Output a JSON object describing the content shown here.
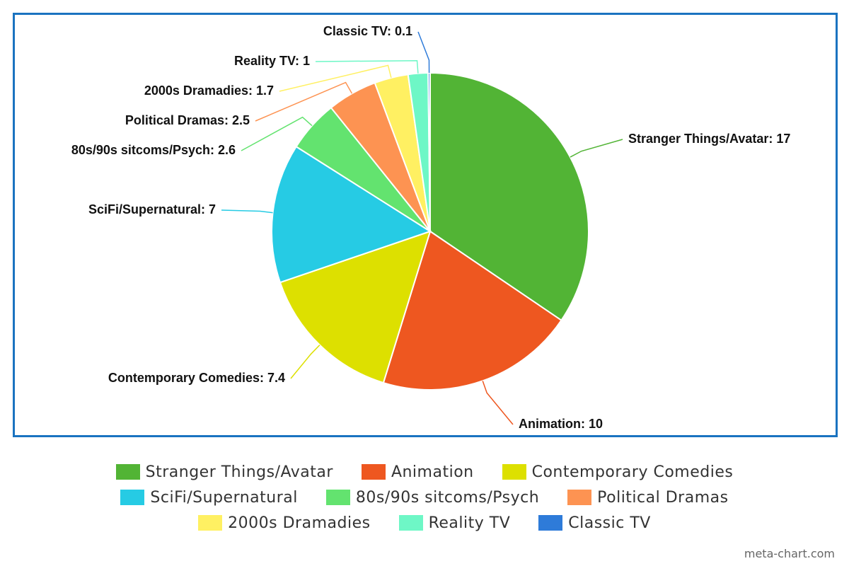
{
  "chart_data": {
    "type": "pie",
    "categories": [
      "Stranger Things/Avatar",
      "Animation",
      "Contemporary Comedies",
      "SciFi/Supernatural",
      "80s/90s sitcoms/Psych",
      "Political Dramas",
      "2000s Dramadies",
      "Reality TV",
      "Classic TV"
    ],
    "values": [
      17,
      10,
      7.4,
      7,
      2.6,
      2.5,
      1.7,
      1,
      0.1
    ],
    "value_labels": [
      "Stranger Things/Avatar: 17",
      "Animation: 10",
      "Contemporary Comedies: 7.4",
      "SciFi/Supernatural: 7",
      "80s/90s sitcoms/Psych: 2.6",
      "Political Dramas: 2.5",
      "2000s Dramadies: 1.7",
      "Reality TV: 1",
      "Classic TV: 0.1"
    ],
    "colors": [
      "#52b435",
      "#ee5720",
      "#dde000",
      "#26cbe4",
      "#63e36f",
      "#fd9352",
      "#fff062",
      "#6ef7c6",
      "#2e7bd9"
    ],
    "legend": "bottom",
    "credit": "meta-chart.com"
  }
}
